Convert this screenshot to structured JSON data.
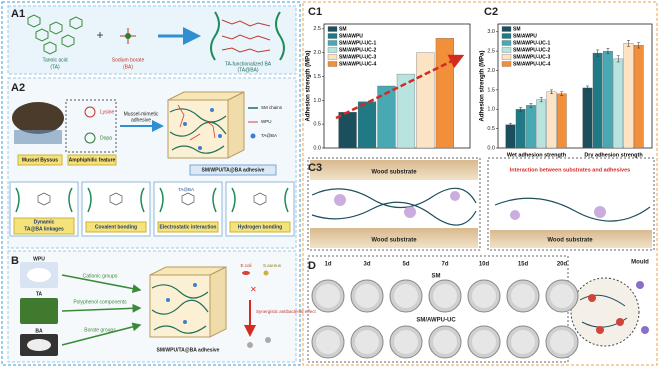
{
  "panel_labels": {
    "a1": "A1",
    "a2": "A2",
    "b": "B",
    "c1": "C1",
    "c2": "C2",
    "c3": "C3",
    "d": "D"
  },
  "a1": {
    "ta": "Tannic acid",
    "ta_abbr": "(TA)",
    "ba": "Sodium borate",
    "ba_abbr": "(BA)",
    "product": "TA-functionalized BA",
    "product_abbr": "(TA@BA)"
  },
  "a2": {
    "mussel": "Mussel Byssus",
    "amphiphilic": "Amphiphilic feature",
    "lysine": "Lysine",
    "dopa": "Dopa",
    "arrow_text": "Mussel-mimetic",
    "arrow_text2": "adhesive",
    "legend": [
      "SM chains",
      "WPU",
      "TA@BA"
    ],
    "adhesive": "SM/WPU/TA@BA adhesive",
    "ta_at_ba_tag": "TA@BA",
    "bonds": [
      [
        "Dynamic",
        "TA@BA linkages"
      ],
      [
        "Covalent bonding"
      ],
      [
        "Electrostatic interaction"
      ],
      [
        "Hydrogen bonding"
      ]
    ]
  },
  "b": {
    "sources": [
      "WPU",
      "TA",
      "BA"
    ],
    "arrows": [
      "Cationic groups",
      "Polyphenol components",
      "Borate groups"
    ],
    "adhesive": "SM/WPU/TA@BA adhesive",
    "bacteria": [
      "E.coli",
      "S.aureus"
    ],
    "effect": "Synergistic antibacterial effect"
  },
  "chart_data": [
    {
      "type": "bar",
      "ylabel": "Adhesion strength (MPa)",
      "categories": [
        null
      ],
      "series": [
        {
          "name": "SM",
          "color": "#1b4f5e",
          "values": [
            0.75
          ]
        },
        {
          "name": "SM/AWPU",
          "color": "#1f7a86",
          "values": [
            0.97
          ]
        },
        {
          "name": "SM/AWPU-UC-1",
          "color": "#49a9b3",
          "values": [
            1.3
          ]
        },
        {
          "name": "SM/AWPU-UC-2",
          "color": "#b9e3df",
          "values": [
            1.55
          ]
        },
        {
          "name": "SM/AWPU-UC-3",
          "color": "#fbe3c3",
          "values": [
            2.0
          ]
        },
        {
          "name": "SM/AWPU-UC-4",
          "color": "#f28f3b",
          "values": [
            2.3
          ]
        }
      ],
      "ylim": [
        0,
        2.6
      ],
      "yticks": [
        {
          "value": 0,
          "label": "0.0"
        },
        0.5,
        {
          "value": 1,
          "label": "1.0"
        },
        1.5,
        {
          "value": 2,
          "label": "2.0"
        },
        2.5
      ]
    },
    {
      "type": "bar",
      "ylabel": "Adhesion strength (MPa)",
      "categories": [
        "Wet adhesion strength",
        "Dry adhesion strength"
      ],
      "series": [
        {
          "name": "SM",
          "color": "#1b4f5e",
          "values": [
            0.6,
            1.55
          ],
          "errors": [
            0.04,
            0.05
          ]
        },
        {
          "name": "SM/AWPU",
          "color": "#1f7a86",
          "values": [
            1.0,
            2.45
          ],
          "errors": [
            0.05,
            0.08
          ]
        },
        {
          "name": "SM/AWPU-UC-1",
          "color": "#49a9b3",
          "values": [
            1.1,
            2.5
          ],
          "errors": [
            0.05,
            0.07
          ]
        },
        {
          "name": "SM/AWPU-UC-2",
          "color": "#b9e3df",
          "values": [
            1.25,
            2.3
          ],
          "errors": [
            0.06,
            0.08
          ]
        },
        {
          "name": "SM/AWPU-UC-3",
          "color": "#fbe3c3",
          "values": [
            1.45,
            2.7
          ],
          "errors": [
            0.05,
            0.08
          ]
        },
        {
          "name": "SM/AWPU-UC-4",
          "color": "#f28f3b",
          "values": [
            1.4,
            2.65
          ],
          "errors": [
            0.05,
            0.07
          ]
        }
      ],
      "ylim": [
        0,
        3.2
      ],
      "yticks": [
        {
          "value": 0,
          "label": "0.0"
        },
        0.5,
        {
          "value": 1,
          "label": "1.0"
        },
        1.5,
        {
          "value": 2,
          "label": "2.0"
        },
        2.5,
        {
          "value": 3,
          "label": "3.0"
        }
      ]
    }
  ],
  "c3": {
    "wood": "Wood substrate",
    "interaction": "Interaction between substrates and adhesives"
  },
  "d": {
    "days": [
      "1d",
      "3d",
      "5d",
      "7d",
      "10d",
      "15d",
      "20d"
    ],
    "rows": [
      "SM",
      "SM/AWPU-UC"
    ],
    "mould": "Mould"
  }
}
